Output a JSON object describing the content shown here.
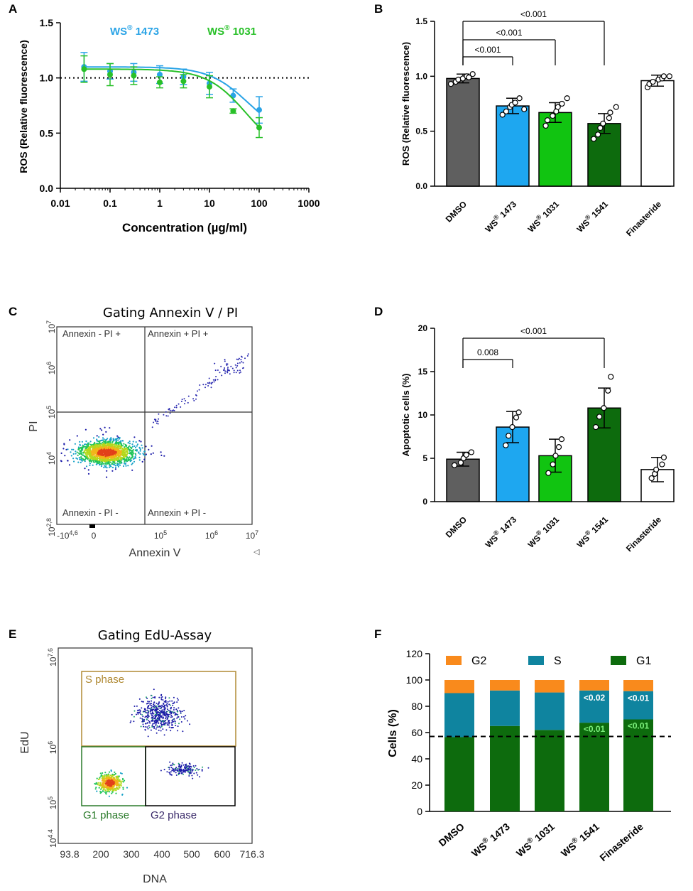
{
  "colors": {
    "dmso": "#5f5f5f",
    "ws1473": "#1ea7f0",
    "ws1031": "#11c411",
    "ws1541": "#0d6b0d",
    "finasteride": "#ffffff",
    "g2": "#f98a1c",
    "s": "#0f849f",
    "g1": "#0d6b0d",
    "curve1473": "#29a3e6",
    "curve1031": "#28c028"
  },
  "chart_data": [
    {
      "panel": "A",
      "type": "scatter",
      "xscale": "log",
      "xlabel": "Concentration (µg/ml)",
      "ylabel": "ROS (Relative fluorescence)",
      "xlim": [
        0.01,
        1000
      ],
      "ylim": [
        0.0,
        1.5
      ],
      "xticks": [
        "0.01",
        "0.1",
        "1",
        "10",
        "100",
        "1000"
      ],
      "yticks": [
        "0.0",
        "0.5",
        "1.0",
        "1.5"
      ],
      "reference_line": 1.0,
      "series": [
        {
          "name": "WS 1473",
          "superscript": "®",
          "color": "#29a3e6",
          "x": [
            0.03,
            0.1,
            0.3,
            1,
            3,
            10,
            30,
            100
          ],
          "y": [
            1.1,
            1.06,
            1.05,
            1.03,
            1.01,
            0.95,
            0.84,
            0.71
          ],
          "err": [
            0.13,
            0.07,
            0.08,
            0.08,
            0.07,
            0.1,
            0.06,
            0.12
          ]
        },
        {
          "name": "WS 1031",
          "superscript": "®",
          "color": "#28c028",
          "x": [
            0.03,
            0.1,
            0.3,
            1,
            3,
            10,
            30,
            100
          ],
          "y": [
            1.08,
            1.03,
            1.02,
            0.96,
            0.97,
            0.92,
            0.7,
            0.55
          ],
          "err": [
            0.12,
            0.1,
            0.08,
            0.05,
            0.06,
            0.1,
            0.02,
            0.09
          ]
        }
      ]
    },
    {
      "panel": "B",
      "type": "bar",
      "ylabel": "ROS (Relative fluorescence)",
      "ylim": [
        0.0,
        1.5
      ],
      "yticks": [
        "0.0",
        "0.5",
        "1.0",
        "1.5"
      ],
      "categories": [
        "DMSO",
        "WS® 1473",
        "WS® 1031",
        "WS® 1541",
        "Finasteride"
      ],
      "values": [
        0.98,
        0.73,
        0.67,
        0.57,
        0.96
      ],
      "errors": [
        0.04,
        0.07,
        0.09,
        0.09,
        0.05
      ],
      "points": [
        [
          0.93,
          0.95,
          0.97,
          0.98,
          1.0,
          0.99,
          1.02
        ],
        [
          0.65,
          0.68,
          0.72,
          0.74,
          0.76,
          0.8,
          0.7
        ],
        [
          0.55,
          0.6,
          0.64,
          0.68,
          0.72,
          0.75,
          0.8
        ],
        [
          0.43,
          0.47,
          0.53,
          0.57,
          0.62,
          0.67,
          0.72
        ],
        [
          0.9,
          0.93,
          0.95,
          0.97,
          0.98,
          1.0,
          1.0
        ]
      ],
      "brackets": [
        {
          "from": 0,
          "to": 1,
          "label": "<0.001"
        },
        {
          "from": 0,
          "to": 2,
          "label": "<0.001"
        },
        {
          "from": 0,
          "to": 3,
          "label": "<0.001"
        }
      ]
    },
    {
      "panel": "C",
      "type": "scatter",
      "title": "Gating Annexin V / PI",
      "xlabel": "Annexin V",
      "ylabel": "PI",
      "xticks": [
        "-10",
        "0",
        "10",
        "10",
        "10"
      ],
      "xtick_exponents": [
        "4,6",
        "",
        "5",
        "6",
        "7"
      ],
      "yticks": [
        "10",
        "10",
        "10",
        "10",
        "10",
        "10"
      ],
      "ytick_exponents": [
        "2,8",
        "4",
        "5",
        "6",
        "7",
        ""
      ],
      "quadrants": [
        "Annexin -  PI +",
        "Annexin +  PI +",
        "Annexin -  PI -",
        "Annexin +  PI -"
      ],
      "corner_mark": "◁"
    },
    {
      "panel": "D",
      "type": "bar",
      "ylabel": "Apoptotic cells (%)",
      "ylim": [
        0,
        20
      ],
      "yticks": [
        "0",
        "5",
        "10",
        "15",
        "20"
      ],
      "categories": [
        "DMSO",
        "WS® 1473",
        "WS® 1031",
        "WS® 1541",
        "Finasteride"
      ],
      "values": [
        4.9,
        8.6,
        5.3,
        10.8,
        3.7
      ],
      "errors": [
        0.8,
        1.8,
        1.9,
        2.3,
        1.4
      ],
      "points": [
        [
          4.2,
          4.5,
          5.0,
          5.4,
          5.7
        ],
        [
          6.5,
          7.6,
          8.6,
          9.7,
          10.3
        ],
        [
          3.3,
          4.3,
          5.3,
          6.3,
          7.2
        ],
        [
          8.6,
          9.8,
          10.8,
          12.8,
          14.4
        ],
        [
          2.7,
          3.2,
          3.7,
          4.3,
          5.1
        ]
      ],
      "brackets": [
        {
          "from": 0,
          "to": 1,
          "label": "0.008"
        },
        {
          "from": 0,
          "to": 3,
          "label": "<0.001"
        }
      ]
    },
    {
      "panel": "E",
      "type": "scatter",
      "title": "Gating EdU-Assay",
      "xlabel": "DNA",
      "ylabel": "EdU",
      "xticks": [
        "93.8",
        "200",
        "300",
        "400",
        "500",
        "600",
        "716.3"
      ],
      "yticks": [
        "10",
        "10",
        "10",
        "10"
      ],
      "ytick_exponents": [
        "4.4",
        "5",
        "6",
        "7.6"
      ],
      "gates": [
        "S phase",
        "G1 phase",
        "G2 phase"
      ]
    },
    {
      "panel": "F",
      "type": "bar",
      "stacked": true,
      "ylabel": "Cells (%)",
      "ylim": [
        0,
        120
      ],
      "yticks": [
        "0",
        "20",
        "40",
        "60",
        "80",
        "100",
        "120"
      ],
      "categories": [
        "DMSO",
        "WS® 1473",
        "WS® 1031",
        "WS® 1541",
        "Finasteride"
      ],
      "reference_line": 57,
      "series": [
        {
          "name": "G1",
          "color": "#0d6b0d",
          "values": [
            56.5,
            65,
            62,
            67.5,
            70
          ]
        },
        {
          "name": "S",
          "color": "#0f849f",
          "values": [
            33.5,
            27,
            28.5,
            24.5,
            21.5
          ]
        },
        {
          "name": "G2",
          "color": "#f98a1c",
          "values": [
            10,
            8,
            9.5,
            8,
            8.5
          ]
        }
      ],
      "legend_order": [
        "G2",
        "S",
        "G1"
      ],
      "annotations": [
        {
          "category": "WS® 1541",
          "series": "S",
          "label": "<0.02"
        },
        {
          "category": "WS® 1541",
          "series": "G1",
          "label": "<0.01"
        },
        {
          "category": "Finasteride",
          "series": "S",
          "label": "<0.01"
        },
        {
          "category": "Finasteride",
          "series": "G1",
          "label": "<0.01"
        }
      ]
    }
  ],
  "panel_labels": [
    "A",
    "B",
    "C",
    "D",
    "E",
    "F"
  ]
}
